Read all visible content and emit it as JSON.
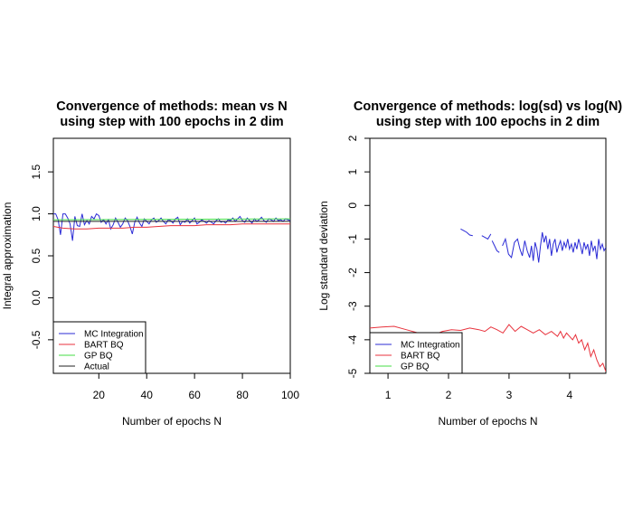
{
  "colors": {
    "mc": "#2b2bd6",
    "bart": "#e8323c",
    "gp": "#44dd44",
    "actual": "#222222"
  },
  "chart_data": [
    {
      "type": "line",
      "title": "Convergence of methods: mean vs N",
      "subtitle": "using step with 100 epochs in 2 dim",
      "xlabel": "Number of epochs N",
      "ylabel": "Integral approximation",
      "xlim": [
        1,
        100
      ],
      "ylim": [
        -0.9,
        1.9
      ],
      "xticks": [
        20,
        40,
        60,
        80,
        100
      ],
      "yticks": [
        -0.5,
        0.0,
        0.5,
        1.0,
        1.5
      ],
      "xtick_labels": [
        "20",
        "40",
        "60",
        "80",
        "100"
      ],
      "ytick_labels": [
        "-0.5",
        "0.0",
        "0.5",
        "1.0",
        "1.5"
      ],
      "grid": false,
      "legend_position": "bottom-left",
      "series": [
        {
          "name": "MC Integration",
          "color": "mc",
          "x": [
            1,
            2,
            3,
            4,
            5,
            6,
            7,
            8,
            9,
            10,
            11,
            12,
            13,
            14,
            15,
            16,
            17,
            18,
            19,
            20,
            21,
            22,
            23,
            24,
            25,
            26,
            27,
            28,
            29,
            30,
            31,
            32,
            33,
            34,
            35,
            36,
            37,
            38,
            39,
            40,
            41,
            42,
            43,
            44,
            45,
            46,
            47,
            48,
            49,
            50,
            51,
            52,
            53,
            54,
            55,
            56,
            57,
            58,
            59,
            60,
            61,
            62,
            63,
            64,
            65,
            66,
            67,
            68,
            69,
            70,
            71,
            72,
            73,
            74,
            75,
            76,
            77,
            78,
            79,
            80,
            81,
            82,
            83,
            84,
            85,
            86,
            87,
            88,
            89,
            90,
            91,
            92,
            93,
            94,
            95,
            96,
            97,
            98,
            99,
            100
          ],
          "y": [
            1.0,
            1.0,
            0.93,
            0.75,
            1.0,
            1.0,
            0.95,
            0.88,
            0.68,
            0.97,
            0.86,
            0.85,
            1.0,
            0.87,
            0.92,
            0.88,
            0.97,
            0.94,
            1.0,
            0.98,
            0.9,
            0.93,
            0.88,
            0.93,
            0.82,
            0.87,
            0.95,
            0.9,
            0.84,
            0.88,
            0.95,
            0.92,
            0.85,
            0.76,
            0.9,
            0.96,
            0.89,
            0.85,
            0.94,
            0.91,
            0.88,
            0.93,
            0.95,
            0.9,
            0.92,
            0.95,
            0.91,
            0.88,
            0.93,
            0.92,
            0.89,
            0.94,
            0.96,
            0.87,
            0.91,
            0.9,
            0.94,
            0.89,
            0.92,
            0.95,
            0.88,
            0.9,
            0.93,
            0.91,
            0.89,
            0.92,
            0.9,
            0.88,
            0.92,
            0.94,
            0.9,
            0.91,
            0.89,
            0.93,
            0.92,
            0.95,
            0.91,
            0.94,
            0.97,
            0.92,
            0.9,
            0.95,
            0.92,
            0.89,
            0.94,
            0.91,
            0.93,
            0.96,
            0.92,
            0.9,
            0.94,
            0.93,
            0.91,
            0.95,
            0.92,
            0.93,
            0.91,
            0.94,
            0.93,
            0.92
          ]
        },
        {
          "name": "BART BQ",
          "color": "bart",
          "x": [
            1,
            5,
            10,
            15,
            20,
            25,
            30,
            35,
            40,
            45,
            50,
            55,
            60,
            65,
            70,
            75,
            80,
            85,
            90,
            95,
            100
          ],
          "y": [
            0.85,
            0.83,
            0.82,
            0.82,
            0.83,
            0.83,
            0.83,
            0.84,
            0.84,
            0.85,
            0.86,
            0.86,
            0.86,
            0.87,
            0.87,
            0.87,
            0.88,
            0.88,
            0.88,
            0.88,
            0.88
          ]
        },
        {
          "name": "GP BQ",
          "color": "gp",
          "x": [
            1,
            100
          ],
          "y": [
            0.93,
            0.94
          ]
        },
        {
          "name": "Actual",
          "color": "actual",
          "x": [
            1,
            100
          ],
          "y": [
            0.91,
            0.91
          ]
        }
      ]
    },
    {
      "type": "line",
      "title": "Convergence of methods: log(sd) vs log(N)",
      "subtitle": "using step with 100 epochs in 2 dim",
      "xlabel": "Number of epochs N",
      "ylabel": "Log standard deviation",
      "xlim": [
        0.7,
        4.6
      ],
      "ylim": [
        -5,
        2
      ],
      "xticks": [
        1,
        2,
        3,
        4
      ],
      "yticks": [
        -5,
        -4,
        -3,
        -2,
        -1,
        0,
        1,
        2
      ],
      "xtick_labels": [
        "1",
        "2",
        "3",
        "4"
      ],
      "ytick_labels": [
        "-5",
        "-4",
        "-3",
        "-2",
        "-1",
        "0",
        "1",
        "2"
      ],
      "grid": false,
      "legend_position": "bottom-left",
      "series": [
        {
          "name": "MC Integration",
          "color": "mc",
          "segments": [
            {
              "x": [
                2.2,
                2.25,
                2.3,
                2.35,
                2.4
              ],
              "y": [
                -0.7,
                -0.75,
                -0.8,
                -0.88,
                -0.9
              ]
            },
            {
              "x": [
                2.55,
                2.6,
                2.65,
                2.7
              ],
              "y": [
                -0.9,
                -0.95,
                -1.0,
                -0.85
              ]
            },
            {
              "x": [
                2.72,
                2.76,
                2.8,
                2.84
              ],
              "y": [
                -1.05,
                -1.2,
                -1.35,
                -1.4
              ]
            },
            {
              "x": [
                2.89,
                2.94,
                2.99,
                3.04,
                3.09,
                3.14,
                3.18,
                3.22,
                3.26,
                3.3,
                3.34,
                3.37,
                3.4,
                3.43,
                3.46,
                3.49,
                3.52,
                3.55,
                3.58,
                3.61,
                3.64,
                3.67,
                3.7,
                3.73,
                3.76,
                3.79,
                3.82,
                3.85,
                3.88,
                3.91,
                3.94,
                3.97,
                4.0,
                4.03,
                4.06,
                4.09,
                4.12,
                4.15,
                4.18,
                4.21,
                4.24,
                4.27,
                4.3,
                4.33,
                4.36,
                4.39,
                4.42,
                4.45,
                4.48,
                4.51,
                4.54,
                4.57,
                4.6
              ],
              "y": [
                -1.2,
                -1.0,
                -1.45,
                -1.55,
                -1.1,
                -1.0,
                -1.3,
                -1.5,
                -1.05,
                -1.35,
                -1.55,
                -1.2,
                -1.65,
                -1.1,
                -1.3,
                -1.7,
                -1.2,
                -0.8,
                -1.1,
                -0.9,
                -1.3,
                -1.0,
                -1.5,
                -1.15,
                -1.0,
                -1.4,
                -1.2,
                -1.05,
                -1.35,
                -1.1,
                -1.25,
                -1.0,
                -1.3,
                -1.15,
                -1.4,
                -1.1,
                -1.3,
                -1.0,
                -1.2,
                -1.45,
                -1.1,
                -1.3,
                -1.15,
                -1.5,
                -1.05,
                -1.35,
                -1.2,
                -1.6,
                -1.0,
                -1.3,
                -1.15,
                -1.35,
                -1.25
              ]
            }
          ]
        },
        {
          "name": "BART BQ",
          "color": "bart",
          "segments": [
            {
              "x": [
                0.7,
                0.9,
                1.1,
                1.3,
                1.5,
                1.7,
                1.9,
                2.05,
                2.2,
                2.35,
                2.5,
                2.6,
                2.7,
                2.8,
                2.9,
                3.0,
                3.1,
                3.2,
                3.3,
                3.4,
                3.5,
                3.6,
                3.7,
                3.8,
                3.85,
                3.9,
                3.95,
                4.0,
                4.05,
                4.1,
                4.15,
                4.2,
                4.25,
                4.3,
                4.35,
                4.4,
                4.45,
                4.5,
                4.55,
                4.6
              ],
              "y": [
                -3.65,
                -3.62,
                -3.6,
                -3.7,
                -3.8,
                -3.9,
                -3.75,
                -3.7,
                -3.72,
                -3.65,
                -3.7,
                -3.75,
                -3.62,
                -3.7,
                -3.8,
                -3.55,
                -3.75,
                -3.6,
                -3.7,
                -3.8,
                -3.7,
                -3.85,
                -3.75,
                -3.9,
                -3.75,
                -3.95,
                -3.8,
                -3.9,
                -4.0,
                -3.85,
                -4.1,
                -4.0,
                -4.3,
                -4.1,
                -4.5,
                -4.3,
                -4.6,
                -4.8,
                -4.7,
                -4.95
              ]
            }
          ]
        },
        {
          "name": "GP BQ",
          "color": "gp",
          "segments": []
        }
      ]
    }
  ]
}
